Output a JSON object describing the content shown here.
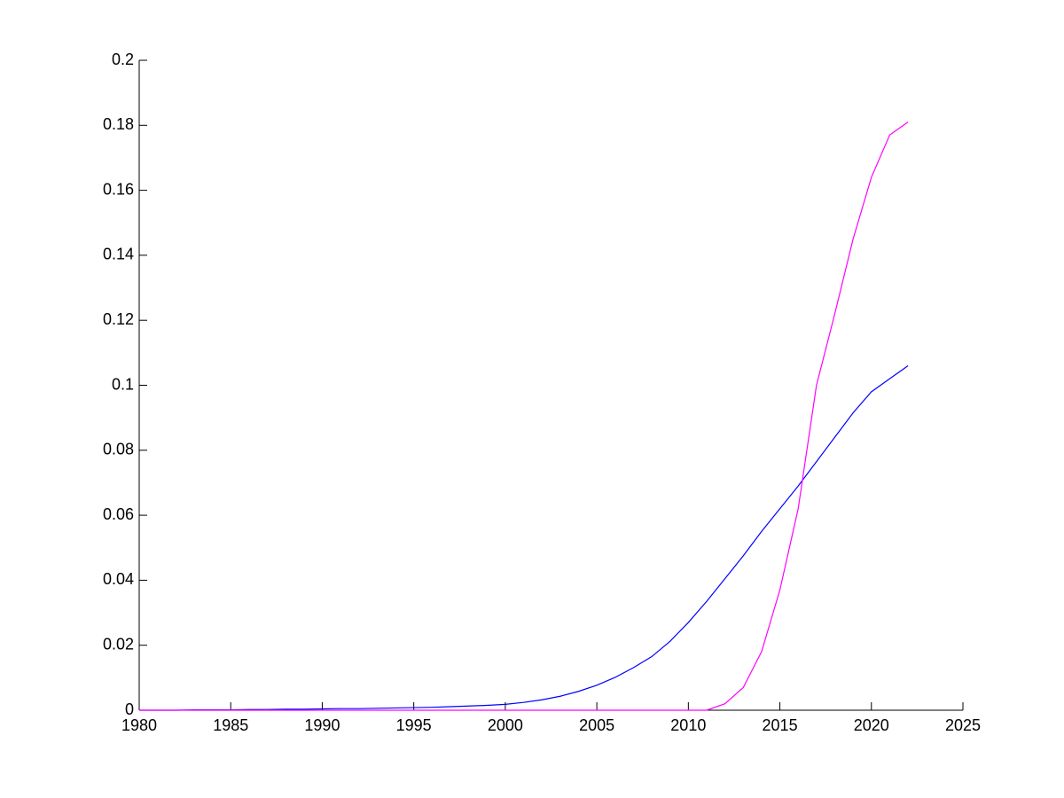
{
  "chart_data": {
    "type": "line",
    "x": [
      1980,
      1981,
      1982,
      1983,
      1984,
      1985,
      1986,
      1987,
      1988,
      1989,
      1990,
      1991,
      1992,
      1993,
      1994,
      1995,
      1996,
      1997,
      1998,
      1999,
      2000,
      2001,
      2002,
      2003,
      2004,
      2005,
      2006,
      2007,
      2008,
      2009,
      2010,
      2011,
      2012,
      2013,
      2014,
      2015,
      2016,
      2017,
      2018,
      2019,
      2020,
      2021,
      2022
    ],
    "series": [
      {
        "color": "#0000ff",
        "values": [
          0,
          0,
          0,
          0.0001,
          0.0001,
          0.0001,
          0.0002,
          0.0002,
          0.0003,
          0.0003,
          0.0004,
          0.0005,
          0.0005,
          0.0006,
          0.0007,
          0.0008,
          0.0009,
          0.0011,
          0.0013,
          0.0015,
          0.0018,
          0.0024,
          0.0032,
          0.0043,
          0.0058,
          0.0077,
          0.0101,
          0.0131,
          0.0165,
          0.0212,
          0.027,
          0.0335,
          0.0405,
          0.0475,
          0.055,
          0.062,
          0.069,
          0.0765,
          0.084,
          0.0915,
          0.098,
          0.102,
          0.106
        ]
      },
      {
        "color": "#ff00ff",
        "values": [
          0,
          0,
          0,
          0,
          0,
          0,
          0,
          0,
          0,
          0,
          0,
          0,
          0,
          0,
          0,
          0,
          0,
          0,
          0,
          0,
          0,
          0,
          0,
          0,
          0,
          0,
          0,
          0,
          0,
          0,
          0,
          0,
          0.002,
          0.007,
          0.018,
          0.037,
          0.062,
          0.1,
          0.122,
          0.145,
          0.164,
          0.177,
          0.181
        ]
      }
    ],
    "xlim": [
      1980,
      2025
    ],
    "xticks": [
      1980,
      1985,
      1990,
      1995,
      2000,
      2005,
      2010,
      2015,
      2020,
      2025
    ],
    "ylim": [
      0,
      0.2
    ],
    "yticks": [
      0,
      0.02,
      0.04,
      0.06,
      0.08,
      0.1,
      0.12,
      0.14,
      0.16,
      0.18,
      0.2
    ]
  }
}
